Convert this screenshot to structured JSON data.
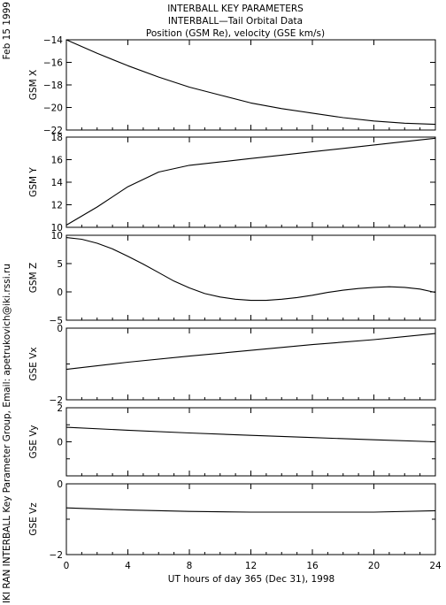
{
  "header": {
    "lines": [
      "INTERBALL KEY PARAMETERS",
      "INTERBALL—Tail Orbital Data",
      "Position (GSM Re), velocity (GSE km/s)"
    ]
  },
  "side_labels": {
    "date": "Feb 15 1999",
    "credit": "IKI RAN INTERBALL Key Parameter Group, Email: apetrukovich@iki.rssi.ru"
  },
  "chart_data": {
    "type": "line",
    "xlabel": "UT hours of day 365 (Dec 31), 1998",
    "xlim": [
      0,
      24
    ],
    "xticks": [
      0,
      4,
      8,
      12,
      16,
      20,
      24
    ],
    "panels": [
      {
        "id": "gsm-x",
        "ylabel": "GSM X",
        "ylim": [
          -22,
          -14
        ],
        "yticks": [
          -22,
          -20,
          -18,
          -16,
          -14
        ],
        "x": [
          0,
          2,
          4,
          6,
          8,
          10,
          12,
          14,
          16,
          18,
          20,
          22,
          24
        ],
        "y": [
          -14.0,
          -15.2,
          -16.3,
          -17.3,
          -18.2,
          -18.9,
          -19.6,
          -20.1,
          -20.5,
          -20.9,
          -21.2,
          -21.4,
          -21.5
        ]
      },
      {
        "id": "gsm-y",
        "ylabel": "GSM Y",
        "ylim": [
          10,
          18
        ],
        "yticks": [
          10,
          12,
          14,
          16,
          18
        ],
        "x": [
          0,
          2,
          4,
          6,
          8,
          10,
          12,
          14,
          16,
          18,
          20,
          22,
          24
        ],
        "y": [
          10.2,
          11.8,
          13.6,
          14.9,
          15.5,
          15.8,
          16.1,
          16.4,
          16.7,
          17.0,
          17.3,
          17.6,
          17.9
        ]
      },
      {
        "id": "gsm-z",
        "ylabel": "GSM Z",
        "ylim": [
          -5,
          10
        ],
        "yticks": [
          -5,
          0,
          5,
          10
        ],
        "x": [
          0,
          1,
          2,
          3,
          4,
          5,
          6,
          7,
          8,
          9,
          10,
          11,
          12,
          13,
          14,
          15,
          16,
          17,
          18,
          19,
          20,
          21,
          22,
          23,
          24
        ],
        "y": [
          9.6,
          9.3,
          8.6,
          7.6,
          6.3,
          4.9,
          3.4,
          1.9,
          0.7,
          -0.3,
          -0.9,
          -1.3,
          -1.5,
          -1.5,
          -1.3,
          -1.0,
          -0.6,
          -0.1,
          0.3,
          0.6,
          0.8,
          0.9,
          0.8,
          0.5,
          -0.1
        ]
      },
      {
        "id": "gse-vx",
        "ylabel": "GSE Vx",
        "ylim": [
          -2,
          0
        ],
        "yticks": [
          -2,
          0
        ],
        "minor_ticks": [
          -1
        ],
        "x": [
          0,
          4,
          8,
          12,
          16,
          20,
          24
        ],
        "y": [
          -1.15,
          -0.95,
          -0.78,
          -0.62,
          -0.46,
          -0.32,
          -0.15
        ]
      },
      {
        "id": "gse-vy",
        "ylabel": "GSE Vy",
        "ylim": [
          -2,
          2
        ],
        "yticks": [
          0,
          2
        ],
        "minor_ticks": [
          -1,
          1
        ],
        "x": [
          0,
          4,
          8,
          12,
          16,
          20,
          24
        ],
        "y": [
          0.85,
          0.68,
          0.52,
          0.38,
          0.25,
          0.12,
          0.0
        ]
      },
      {
        "id": "gse-vz",
        "ylabel": "GSE Vz",
        "ylim": [
          -2,
          0
        ],
        "yticks": [
          -2,
          0
        ],
        "minor_ticks": [
          -1
        ],
        "x": [
          0,
          4,
          8,
          12,
          16,
          20,
          24
        ],
        "y": [
          -0.68,
          -0.74,
          -0.78,
          -0.8,
          -0.8,
          -0.8,
          -0.76
        ]
      }
    ],
    "grid": false,
    "line_color": "#000000"
  }
}
